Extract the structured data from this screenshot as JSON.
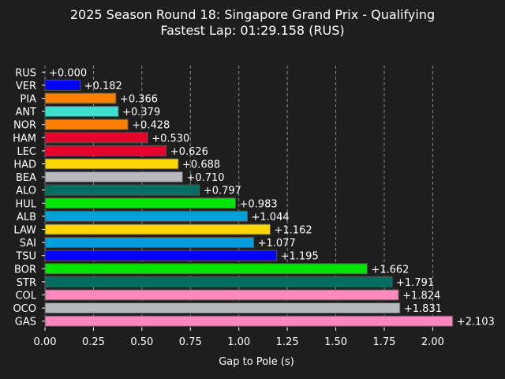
{
  "chart_data": {
    "type": "bar",
    "orientation": "horizontal",
    "title": "2025 Season Round 18: Singapore Grand Prix - Qualifying",
    "subtitle": "Fastest Lap: 01:29.158 (RUS)",
    "xlabel": "Gap to Pole (s)",
    "ylabel": "",
    "xlim": [
      0,
      2.21
    ],
    "x_ticks": [
      "0.00",
      "0.25",
      "0.50",
      "0.75",
      "1.00",
      "1.25",
      "1.50",
      "1.75",
      "2.00"
    ],
    "grid": "vertical dashed",
    "categories": [
      "RUS",
      "VER",
      "PIA",
      "ANT",
      "NOR",
      "HAM",
      "LEC",
      "HAD",
      "BEA",
      "ALO",
      "HUL",
      "ALB",
      "LAW",
      "SAI",
      "TSU",
      "BOR",
      "STR",
      "COL",
      "OCO",
      "GAS"
    ],
    "values": [
      0.0,
      0.182,
      0.366,
      0.379,
      0.428,
      0.53,
      0.626,
      0.688,
      0.71,
      0.797,
      0.983,
      1.044,
      1.162,
      1.077,
      1.195,
      1.662,
      1.791,
      1.824,
      1.831,
      2.103
    ],
    "value_labels": [
      "+0.000",
      "+0.182",
      "+0.366",
      "+0.379",
      "+0.428",
      "+0.530",
      "+0.626",
      "+0.688",
      "+0.710",
      "+0.797",
      "+0.983",
      "+1.044",
      "+1.162",
      "+1.077",
      "+1.195",
      "+1.662",
      "+1.791",
      "+1.824",
      "+1.831",
      "+2.103"
    ],
    "colors": [
      "#00d2be",
      "#0000ff",
      "#ff8000",
      "#40e0d0",
      "#ff8000",
      "#e8002d",
      "#e8002d",
      "#ffd700",
      "#b6babd",
      "#006f62",
      "#00e600",
      "#00a0de",
      "#ffd700",
      "#00a0de",
      "#0000ff",
      "#00e600",
      "#006f62",
      "#ff87bc",
      "#b6babd",
      "#ff87bc"
    ],
    "background_color": "#1e1e1e",
    "text_color": "#ffffff",
    "bar_edge_color": "#555555",
    "grid_color": "#888888"
  }
}
